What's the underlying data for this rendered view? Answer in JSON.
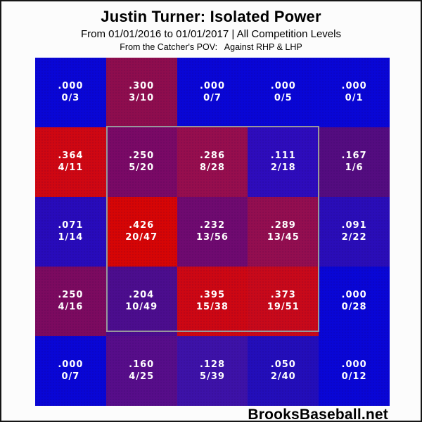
{
  "header": {
    "title": "Justin Turner: Isolated Power",
    "subtitle": "From 01/01/2016 to 01/01/2017 | All Competition Levels",
    "pov_line": "From the Catcher's POV:   Against RHP & LHP"
  },
  "footer": {
    "brand": "BrooksBaseball.net"
  },
  "chart_data": {
    "type": "heatmap",
    "title": "Justin Turner: Isolated Power",
    "date_range": "01/01/2016 to 01/01/2017",
    "competition": "All Competition Levels",
    "perspective": "From the Catcher's POV",
    "split": "Against RHP & LHP",
    "metric": "Isolated Power (extra bases / at-bats)",
    "grid": {
      "rows": 5,
      "cols": 5
    },
    "strike_zone": {
      "row_start": 2,
      "row_end": 4,
      "col_start": 2,
      "col_end": 4,
      "border_color": "#97979c"
    },
    "color_legend": {
      "low": "#0906d6",
      "high": "#d60606"
    },
    "cells": [
      [
        {
          "iso": ".000",
          "ratio": "0/3",
          "color": "#0906d6"
        },
        {
          "iso": ".300",
          "ratio": "3/10",
          "color": "#8e0d4e"
        },
        {
          "iso": ".000",
          "ratio": "0/7",
          "color": "#0906d6"
        },
        {
          "iso": ".000",
          "ratio": "0/5",
          "color": "#0906d6"
        },
        {
          "iso": ".000",
          "ratio": "0/1",
          "color": "#0906d6"
        }
      ],
      [
        {
          "iso": ".364",
          "ratio": "4/11",
          "color": "#cf0712"
        },
        {
          "iso": ".250",
          "ratio": "5/20",
          "color": "#7a0966"
        },
        {
          "iso": ".286",
          "ratio": "8/28",
          "color": "#960e4e"
        },
        {
          "iso": ".111",
          "ratio": "2/18",
          "color": "#2e0cbc"
        },
        {
          "iso": ".167",
          "ratio": "1/6",
          "color": "#540c80"
        }
      ],
      [
        {
          "iso": ".071",
          "ratio": "1/14",
          "color": "#280bbb"
        },
        {
          "iso": ".426",
          "ratio": "20/47",
          "color": "#d60505"
        },
        {
          "iso": ".232",
          "ratio": "13/56",
          "color": "#6f0a70"
        },
        {
          "iso": ".289",
          "ratio": "13/45",
          "color": "#930e50"
        },
        {
          "iso": ".091",
          "ratio": "2/22",
          "color": "#2a0db8"
        }
      ],
      [
        {
          "iso": ".250",
          "ratio": "4/16",
          "color": "#7c0a60"
        },
        {
          "iso": ".204",
          "ratio": "10/49",
          "color": "#4c0d8e"
        },
        {
          "iso": ".395",
          "ratio": "15/38",
          "color": "#cd0713"
        },
        {
          "iso": ".373",
          "ratio": "19/51",
          "color": "#c8091a"
        },
        {
          "iso": ".000",
          "ratio": "0/28",
          "color": "#0906d6"
        }
      ],
      [
        {
          "iso": ".000",
          "ratio": "0/7",
          "color": "#0906d6"
        },
        {
          "iso": ".160",
          "ratio": "4/25",
          "color": "#570d8a"
        },
        {
          "iso": ".128",
          "ratio": "5/39",
          "color": "#3d12a8"
        },
        {
          "iso": ".050",
          "ratio": "2/40",
          "color": "#230eba"
        },
        {
          "iso": ".000",
          "ratio": "0/12",
          "color": "#0906d6"
        }
      ]
    ]
  }
}
